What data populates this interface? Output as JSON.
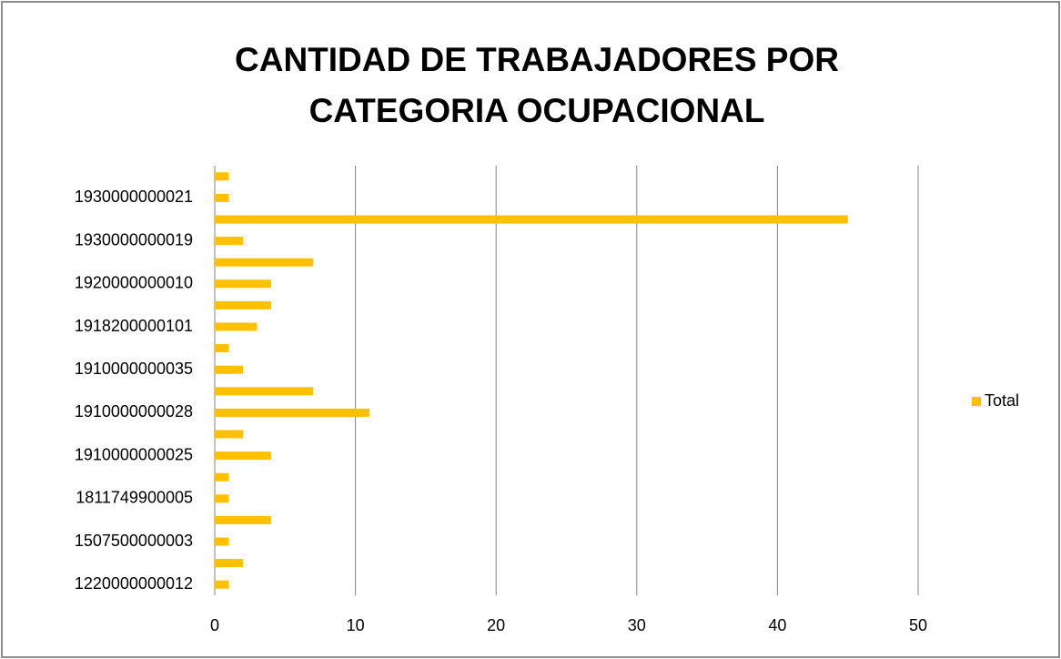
{
  "chart_data": {
    "type": "hbar",
    "title": "CANTIDAD DE TRABAJADORES POR CATEGORIA OCUPACIONAL",
    "categories": [
      "1220000000012",
      null,
      "1507500000003",
      null,
      "1811749900005",
      null,
      "1910000000025",
      null,
      "1910000000028",
      null,
      "1910000000035",
      null,
      "1918200000101",
      null,
      "1920000000010",
      null,
      "1930000000019",
      null,
      "1930000000021",
      null
    ],
    "series": [
      {
        "name": "Total",
        "color": "#ffc000",
        "values": [
          1,
          2,
          1,
          4,
          1,
          1,
          4,
          2,
          11,
          7,
          2,
          1,
          3,
          4,
          4,
          7,
          2,
          45,
          1,
          1
        ]
      }
    ],
    "xlim": [
      0,
      50
    ],
    "xticks": [
      0,
      10,
      20,
      30,
      40,
      50
    ],
    "grid": true,
    "legend": "right"
  }
}
